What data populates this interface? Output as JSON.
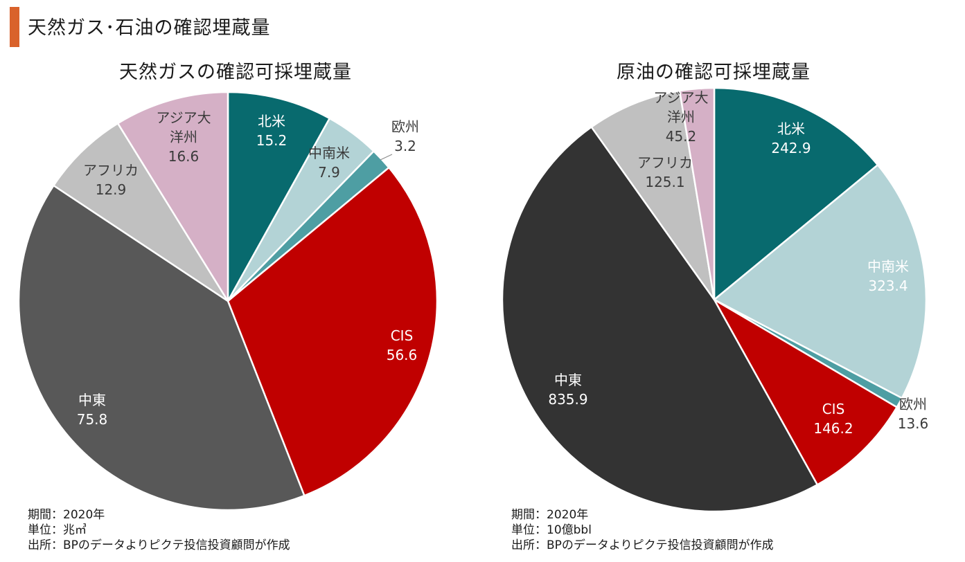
{
  "page": {
    "title": "天然ガス･石油の確認埋蔵量",
    "accent_color": "#D9622B"
  },
  "chart_data": [
    {
      "type": "pie",
      "title": "天然ガスの確認可採埋蔵量",
      "categories": [
        "北米",
        "中南米",
        "欧州",
        "CIS",
        "中東",
        "アフリカ",
        "アジア大洋州"
      ],
      "values": [
        15.2,
        7.9,
        3.2,
        56.6,
        75.8,
        12.9,
        16.6
      ],
      "value_labels": [
        "15.2",
        "7.9",
        "3.2",
        "56.6",
        "75.8",
        "12.9",
        "16.6"
      ],
      "colors": [
        "#086A6E",
        "#B3D3D6",
        "#4E9EA3",
        "#C00000",
        "#585858",
        "#C0C0C0",
        "#D5B0C6"
      ],
      "start_angle_deg": 0,
      "direction": "clockwise",
      "notes": [
        "期間：2020年",
        "単位：兆㎥",
        "出所：BPのデータよりピクテ投信投資顧問が作成"
      ]
    },
    {
      "type": "pie",
      "title": "原油の確認可採埋蔵量",
      "categories": [
        "北米",
        "中南米",
        "欧州",
        "CIS",
        "中東",
        "アフリカ",
        "アジア大洋州"
      ],
      "values": [
        242.9,
        323.4,
        13.6,
        146.2,
        835.9,
        125.1,
        45.2
      ],
      "value_labels": [
        "242.9",
        "323.4",
        "13.6",
        "146.2",
        "835.9",
        "125.1",
        "45.2"
      ],
      "colors": [
        "#086A6E",
        "#B3D3D6",
        "#4E9EA3",
        "#C00000",
        "#333333",
        "#C0C0C0",
        "#D5B0C6"
      ],
      "start_angle_deg": 0,
      "direction": "clockwise",
      "notes": [
        "期間：2020年",
        "単位：10億bbl",
        "出所：BPのデータよりピクテ投信投資顧問が作成"
      ]
    }
  ]
}
